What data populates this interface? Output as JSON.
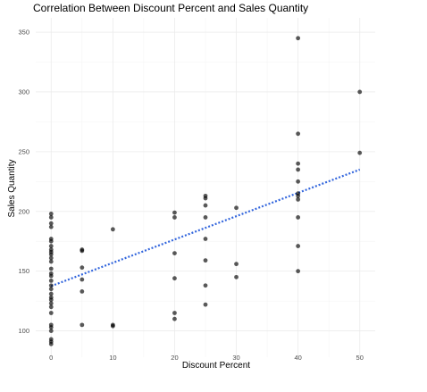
{
  "chart_data": {
    "type": "scatter",
    "title": "Correlation Between Discount Percent and Sales Quantity",
    "xlabel": "Discount Percent",
    "ylabel": "Sales Quantity",
    "xlim": [
      -2.5,
      52.5
    ],
    "ylim": [
      78,
      362
    ],
    "x_ticks": [
      0,
      10,
      20,
      30,
      40,
      50
    ],
    "y_ticks": [
      100,
      150,
      200,
      250,
      300,
      350
    ],
    "grid": true,
    "points": [
      {
        "x": 0,
        "y": 198
      },
      {
        "x": 0,
        "y": 195
      },
      {
        "x": 0,
        "y": 190
      },
      {
        "x": 0,
        "y": 187
      },
      {
        "x": 0,
        "y": 177
      },
      {
        "x": 0,
        "y": 175
      },
      {
        "x": 0,
        "y": 171
      },
      {
        "x": 0,
        "y": 168
      },
      {
        "x": 0,
        "y": 166
      },
      {
        "x": 0,
        "y": 164
      },
      {
        "x": 0,
        "y": 161
      },
      {
        "x": 0,
        "y": 158
      },
      {
        "x": 0,
        "y": 152
      },
      {
        "x": 0,
        "y": 148
      },
      {
        "x": 0,
        "y": 146
      },
      {
        "x": 0,
        "y": 142
      },
      {
        "x": 0,
        "y": 138
      },
      {
        "x": 0,
        "y": 135
      },
      {
        "x": 0,
        "y": 131
      },
      {
        "x": 0,
        "y": 128
      },
      {
        "x": 0,
        "y": 126
      },
      {
        "x": 0,
        "y": 123
      },
      {
        "x": 0,
        "y": 120
      },
      {
        "x": 0,
        "y": 115
      },
      {
        "x": 0,
        "y": 105
      },
      {
        "x": 0,
        "y": 103
      },
      {
        "x": 0,
        "y": 100
      },
      {
        "x": 0,
        "y": 93
      },
      {
        "x": 0,
        "y": 91
      },
      {
        "x": 0,
        "y": 89
      },
      {
        "x": 5,
        "y": 168
      },
      {
        "x": 5,
        "y": 167
      },
      {
        "x": 5,
        "y": 153
      },
      {
        "x": 5,
        "y": 143
      },
      {
        "x": 5,
        "y": 133
      },
      {
        "x": 5,
        "y": 105
      },
      {
        "x": 10,
        "y": 185
      },
      {
        "x": 10,
        "y": 105
      },
      {
        "x": 10,
        "y": 104
      },
      {
        "x": 20,
        "y": 199
      },
      {
        "x": 20,
        "y": 195
      },
      {
        "x": 20,
        "y": 165
      },
      {
        "x": 20,
        "y": 144
      },
      {
        "x": 20,
        "y": 115
      },
      {
        "x": 20,
        "y": 110
      },
      {
        "x": 25,
        "y": 213
      },
      {
        "x": 25,
        "y": 211
      },
      {
        "x": 25,
        "y": 205
      },
      {
        "x": 25,
        "y": 195
      },
      {
        "x": 25,
        "y": 177
      },
      {
        "x": 25,
        "y": 159
      },
      {
        "x": 25,
        "y": 138
      },
      {
        "x": 25,
        "y": 122
      },
      {
        "x": 30,
        "y": 203
      },
      {
        "x": 30,
        "y": 156
      },
      {
        "x": 30,
        "y": 145
      },
      {
        "x": 40,
        "y": 345
      },
      {
        "x": 40,
        "y": 265
      },
      {
        "x": 40,
        "y": 240
      },
      {
        "x": 40,
        "y": 235
      },
      {
        "x": 40,
        "y": 225
      },
      {
        "x": 40,
        "y": 215
      },
      {
        "x": 40,
        "y": 213
      },
      {
        "x": 40,
        "y": 210
      },
      {
        "x": 40,
        "y": 195
      },
      {
        "x": 40,
        "y": 171
      },
      {
        "x": 40,
        "y": 150
      },
      {
        "x": 50,
        "y": 300
      },
      {
        "x": 50,
        "y": 249
      }
    ],
    "trend_line": {
      "x": [
        0,
        50
      ],
      "y": [
        137.5,
        235
      ],
      "style": "dotted",
      "color": "#3366dd"
    }
  }
}
